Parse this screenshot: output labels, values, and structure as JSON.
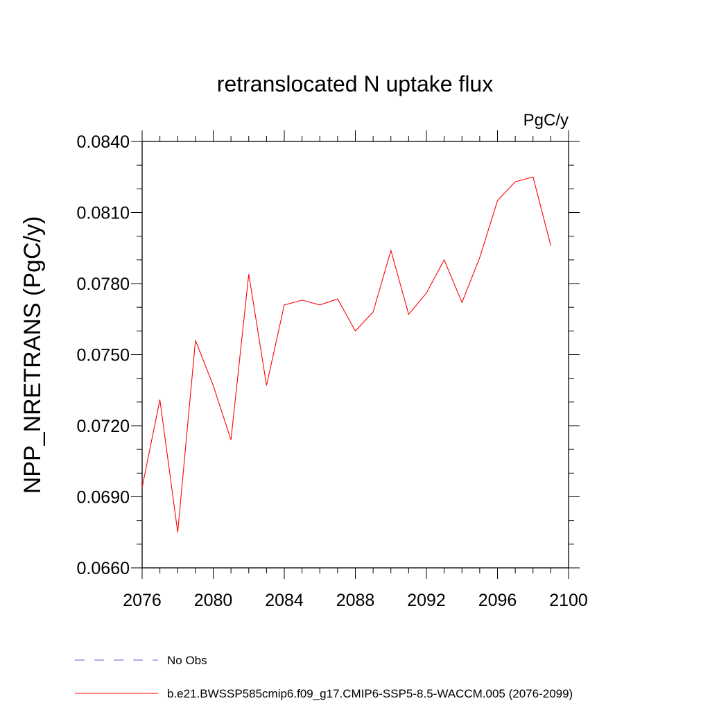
{
  "chart_data": {
    "type": "line",
    "title": "retranslocated N uptake flux",
    "units": "PgC/y",
    "ylabel": "NPP_NRETRANS  (PgC/y)",
    "xlabel": "",
    "xlim": [
      2076,
      2100
    ],
    "ylim": [
      0.066,
      0.084
    ],
    "x_ticks": [
      2076,
      2080,
      2084,
      2088,
      2092,
      2096,
      2100
    ],
    "x_tick_labels": [
      "2076",
      "2080",
      "2084",
      "2088",
      "2092",
      "2096",
      "2100"
    ],
    "y_ticks": [
      0.066,
      0.069,
      0.072,
      0.075,
      0.078,
      0.081,
      0.084
    ],
    "y_tick_labels": [
      "0.0660",
      "0.0690",
      "0.0720",
      "0.0750",
      "0.0780",
      "0.0810",
      "0.0840"
    ],
    "y_minor_step": 0.001,
    "x_minor_step": 1,
    "series": [
      {
        "name": "b.e21.BWSSP585cmip6.f09_g17.CMIP6-SSP5-8.5-WACCM.005 (2076-2099)",
        "color": "#ff0000",
        "style": "solid",
        "x": [
          2076,
          2077,
          2078,
          2079,
          2080,
          2081,
          2082,
          2083,
          2084,
          2085,
          2086,
          2087,
          2088,
          2089,
          2090,
          2091,
          2092,
          2093,
          2094,
          2095,
          2096,
          2097,
          2098,
          2099
        ],
        "values": [
          0.0694,
          0.0731,
          0.0675,
          0.0756,
          0.0737,
          0.0714,
          0.0784,
          0.0737,
          0.0771,
          0.0773,
          0.0771,
          0.07735,
          0.076,
          0.0768,
          0.0794,
          0.0767,
          0.0776,
          0.079,
          0.0772,
          0.0791,
          0.0815,
          0.0823,
          0.0825,
          0.0796
        ]
      }
    ],
    "legend": [
      {
        "label": "No Obs",
        "color": "#6a5acd",
        "style": "dashed"
      },
      {
        "label": "b.e21.BWSSP585cmip6.f09_g17.CMIP6-SSP5-8.5-WACCM.005 (2076-2099)",
        "color": "#ff0000",
        "style": "solid"
      }
    ],
    "legend_position": "bottom",
    "grid": false
  }
}
